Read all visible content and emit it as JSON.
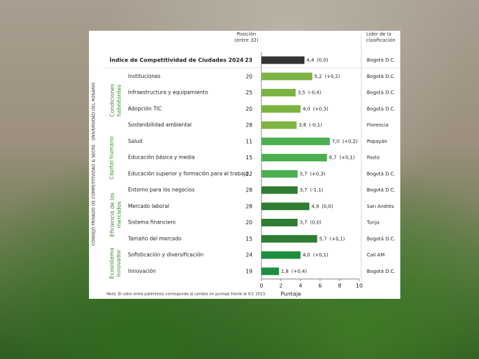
{
  "chart_data": {
    "type": "bar",
    "orientation": "horizontal",
    "source": "CONSEJO PRIVADO DE COMPETITIVIDAD & SECRE · UNIVERSIDAD DEL ROSARIO",
    "position_header": "Posición (entre 32)",
    "leader_header": "Líder de la clasificación",
    "xlabel": "Puntaje",
    "note": "Nota: El valor entre paréntesis corresponde al cambio en puntaje frente al ICC 2023.",
    "categories": [
      "Índice de Competitividad de Ciudades 2024",
      "Instituciones",
      "Infraestructura y equipamiento",
      "Adopción TIC",
      "Sostenibilidad ambiental",
      "Salud",
      "Educación básica y media",
      "Educación superior y formación para el trabajo",
      "Entorno para los negocios",
      "Mercado laboral",
      "Sistema financiero",
      "Tamaño del mercado",
      "Sofisticación y diversificación",
      "Innovación"
    ],
    "group": [
      null,
      "Condiciones habilitantes",
      "Condiciones habilitantes",
      "Condiciones habilitantes",
      "Condiciones habilitantes",
      "Capital humano",
      "Capital humano",
      "Capital humano",
      "Eficiencia de los mercados",
      "Eficiencia de los mercados",
      "Eficiencia de los mercados",
      "Eficiencia de los mercados",
      "Ecosistema innovador",
      "Ecosistema innovador"
    ],
    "positions": [
      23,
      20,
      25,
      20,
      28,
      11,
      15,
      22,
      28,
      28,
      20,
      15,
      24,
      19
    ],
    "values": [
      4.4,
      5.2,
      3.5,
      4.0,
      3.6,
      7.0,
      6.7,
      3.7,
      3.7,
      4.9,
      3.7,
      5.7,
      4.0,
      1.8
    ],
    "value_labels": [
      "4,4",
      "5,2",
      "3,5",
      "4,0",
      "3,6",
      "7,0",
      "6,7",
      "3,7",
      "3,7",
      "4,9",
      "3,7",
      "5,7",
      "4,0",
      "1,8"
    ],
    "changes": [
      "(0,0)",
      "(+0,2)",
      "(-0,4)",
      "(+0,3)",
      "(-0,1)",
      "(+0,2)",
      "(+0,1)",
      "(+0,3)",
      "(-1,1)",
      "(0,0)",
      "(0,0)",
      "(+0,1)",
      "(+0,1)",
      "(+0,4)"
    ],
    "leaders": [
      "Bogotá D.C.",
      "Bogotá D.C.",
      "Bogotá D.C.",
      "Bogotá D.C.",
      "Florencia",
      "Popayán",
      "Pasto",
      "Bogotá D.C.",
      "Bogotá D.C.",
      "San Andrés",
      "Tunja",
      "Bogotá D.C.",
      "Cali AM",
      "Bogotá D.C."
    ],
    "colors": [
      "#333333",
      "#7cb342",
      "#7cb342",
      "#7cb342",
      "#7cb342",
      "#4caf50",
      "#4caf50",
      "#4caf50",
      "#2e7d32",
      "#2e7d32",
      "#2e7d32",
      "#2e7d32",
      "#1e8e3e",
      "#1e8e3e"
    ],
    "xlim": [
      0,
      10
    ],
    "xticks": [
      0,
      2,
      4,
      6,
      8,
      10
    ]
  }
}
